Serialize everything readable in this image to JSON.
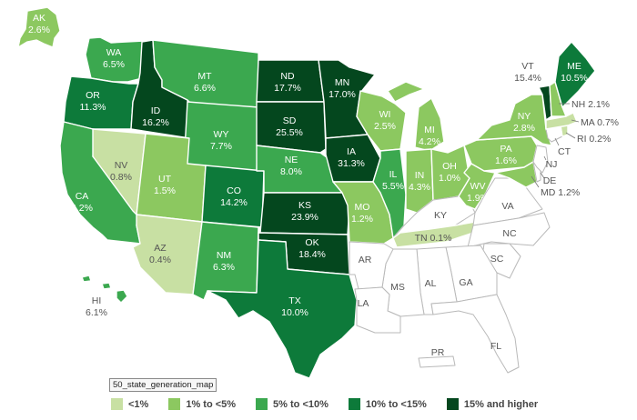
{
  "caption": "50_state_generation_map",
  "legend": [
    {
      "label": "<1%",
      "color": "#c8e0a3"
    },
    {
      "label": "1% to <5%",
      "color": "#8cc860"
    },
    {
      "label": "5% to <10%",
      "color": "#3ba84f"
    },
    {
      "label": "10% to <15%",
      "color": "#0d7a3a"
    },
    {
      "label": "15% and higher",
      "color": "#04471e"
    }
  ],
  "no_data_color": "#ffffff",
  "states": [
    {
      "abbr": "AK",
      "value": "2.6%",
      "category": 1
    },
    {
      "abbr": "HI",
      "value": "6.1%",
      "category": 2
    },
    {
      "abbr": "WA",
      "value": "6.5%",
      "category": 2
    },
    {
      "abbr": "OR",
      "value": "11.3%",
      "category": 3
    },
    {
      "abbr": "CA",
      "value": "6.2%",
      "category": 2
    },
    {
      "abbr": "ID",
      "value": "16.2%",
      "category": 4
    },
    {
      "abbr": "NV",
      "value": "0.8%",
      "category": 0
    },
    {
      "abbr": "MT",
      "value": "6.6%",
      "category": 2
    },
    {
      "abbr": "WY",
      "value": "7.7%",
      "category": 2
    },
    {
      "abbr": "UT",
      "value": "1.5%",
      "category": 1
    },
    {
      "abbr": "AZ",
      "value": "0.4%",
      "category": 0
    },
    {
      "abbr": "CO",
      "value": "14.2%",
      "category": 3
    },
    {
      "abbr": "NM",
      "value": "6.3%",
      "category": 2
    },
    {
      "abbr": "ND",
      "value": "17.7%",
      "category": 4
    },
    {
      "abbr": "SD",
      "value": "25.5%",
      "category": 4
    },
    {
      "abbr": "NE",
      "value": "8.0%",
      "category": 2
    },
    {
      "abbr": "KS",
      "value": "23.9%",
      "category": 4
    },
    {
      "abbr": "OK",
      "value": "18.4%",
      "category": 4
    },
    {
      "abbr": "TX",
      "value": "10.0%",
      "category": 3
    },
    {
      "abbr": "MN",
      "value": "17.0%",
      "category": 4
    },
    {
      "abbr": "IA",
      "value": "31.3%",
      "category": 4
    },
    {
      "abbr": "MO",
      "value": "1.2%",
      "category": 1
    },
    {
      "abbr": "WI",
      "value": "2.5%",
      "category": 1
    },
    {
      "abbr": "IL",
      "value": "5.5%",
      "category": 2
    },
    {
      "abbr": "MI",
      "value": "4.2%",
      "category": 1
    },
    {
      "abbr": "IN",
      "value": "4.3%",
      "category": 1
    },
    {
      "abbr": "OH",
      "value": "1.0%",
      "category": 1
    },
    {
      "abbr": "WV",
      "value": "1.9%",
      "category": 1
    },
    {
      "abbr": "PA",
      "value": "1.6%",
      "category": 1
    },
    {
      "abbr": "NY",
      "value": "2.8%",
      "category": 1
    },
    {
      "abbr": "VT",
      "value": "15.4%",
      "category": 4
    },
    {
      "abbr": "NH",
      "value": "2.1%",
      "category": 1
    },
    {
      "abbr": "ME",
      "value": "10.5%",
      "category": 3
    },
    {
      "abbr": "MA",
      "value": "0.7%",
      "category": 0
    },
    {
      "abbr": "RI",
      "value": "0.2%",
      "category": 0
    },
    {
      "abbr": "MD",
      "value": "1.2%",
      "category": 1
    },
    {
      "abbr": "TN",
      "value": "0.1%",
      "category": 0
    }
  ],
  "unlabeled_states": [
    "CT",
    "NJ",
    "DE",
    "KY",
    "VA",
    "NC",
    "AR",
    "SC",
    "LA",
    "MS",
    "AL",
    "GA",
    "FL",
    "PR"
  ]
}
